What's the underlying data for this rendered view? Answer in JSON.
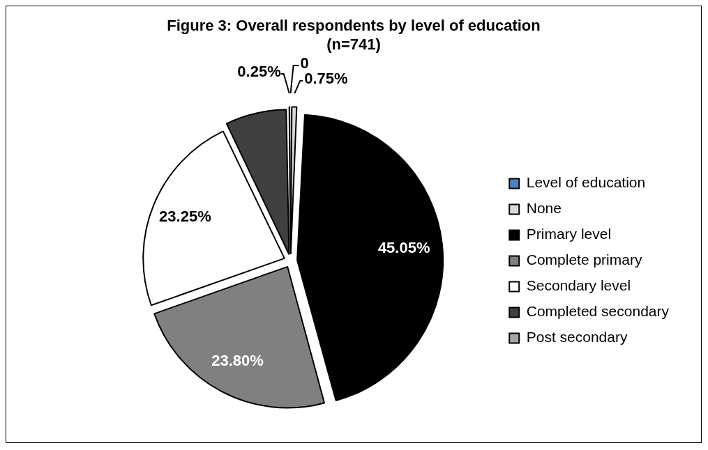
{
  "chart_data": {
    "type": "pie",
    "title": "Figure 3: Overall respondents by level of education (n=741)",
    "categories": [
      "Level of education",
      "None",
      "Primary level",
      "Complete primary",
      "Secondary level",
      "Completed secondary",
      "Post secondary"
    ],
    "values": [
      0,
      0.75,
      45.05,
      23.8,
      23.25,
      6.9,
      0.25
    ],
    "colors": [
      "#4f81bd",
      "#d9d9d9",
      "#000000",
      "#808080",
      "#ffffff",
      "#404040",
      "#a6a6a6"
    ],
    "value_labels": [
      "0",
      "0.75%",
      "45.05%",
      "23.80%",
      "23.25%",
      null,
      "0.25%"
    ],
    "legend": "right"
  }
}
